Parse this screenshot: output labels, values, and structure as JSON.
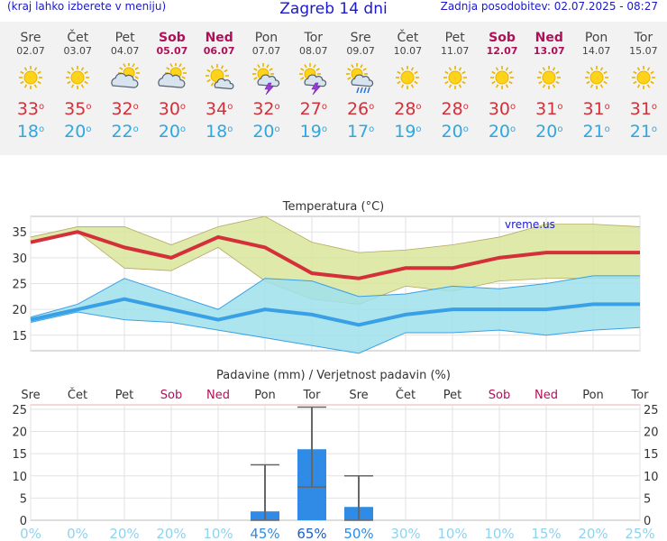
{
  "header": {
    "left_note": "(kraj lahko izberete v meniju)",
    "title": "Zagreb 14 dni",
    "updated": "Zadnja posodobitev: 02.07.2025 - 08:27"
  },
  "forecast": [
    {
      "day": "Sre",
      "date": "02.07",
      "icon": "sun-icon",
      "tmax": "33",
      "tmin": "18",
      "weekend": false
    },
    {
      "day": "Čet",
      "date": "03.07",
      "icon": "sun-icon",
      "tmax": "35",
      "tmin": "20",
      "weekend": false
    },
    {
      "day": "Pet",
      "date": "04.07",
      "icon": "sun-cloud-icon",
      "tmax": "32",
      "tmin": "22",
      "weekend": false
    },
    {
      "day": "Sob",
      "date": "05.07",
      "icon": "sun-cloud-icon",
      "tmax": "30",
      "tmin": "20",
      "weekend": true
    },
    {
      "day": "Ned",
      "date": "06.07",
      "icon": "sun-small-cloud-icon",
      "tmax": "34",
      "tmin": "18",
      "weekend": true
    },
    {
      "day": "Pon",
      "date": "07.07",
      "icon": "sun-storm-icon",
      "tmax": "32",
      "tmin": "20",
      "weekend": false
    },
    {
      "day": "Tor",
      "date": "08.07",
      "icon": "sun-storm-icon",
      "tmax": "27",
      "tmin": "19",
      "weekend": false
    },
    {
      "day": "Sre",
      "date": "09.07",
      "icon": "sun-rain-icon",
      "tmax": "26",
      "tmin": "17",
      "weekend": false
    },
    {
      "day": "Čet",
      "date": "10.07",
      "icon": "sun-icon",
      "tmax": "28",
      "tmin": "19",
      "weekend": false
    },
    {
      "day": "Pet",
      "date": "11.07",
      "icon": "sun-icon",
      "tmax": "28",
      "tmin": "20",
      "weekend": false
    },
    {
      "day": "Sob",
      "date": "12.07",
      "icon": "sun-icon",
      "tmax": "30",
      "tmin": "20",
      "weekend": true
    },
    {
      "day": "Ned",
      "date": "13.07",
      "icon": "sun-icon",
      "tmax": "31",
      "tmin": "20",
      "weekend": true
    },
    {
      "day": "Pon",
      "date": "14.07",
      "icon": "sun-icon",
      "tmax": "31",
      "tmin": "21",
      "weekend": false
    },
    {
      "day": "Tor",
      "date": "15.07",
      "icon": "sun-icon",
      "tmax": "31",
      "tmin": "21",
      "weekend": false
    }
  ],
  "degree_symbol": "o",
  "chart_data": [
    {
      "type": "line",
      "title": "Temperatura (°C)",
      "watermark": "vreme.us",
      "categories": [
        "Sre",
        "Čet",
        "Pet",
        "Sob",
        "Ned",
        "Pon",
        "Tor",
        "Sre",
        "Čet",
        "Pet",
        "Sob",
        "Ned",
        "Pon",
        "Tor"
      ],
      "ylim": [
        12,
        38
      ],
      "yticks": [
        15,
        20,
        25,
        30,
        35
      ],
      "grid": true,
      "series": [
        {
          "key": "max",
          "values": [
            33,
            35,
            32,
            30,
            34,
            32,
            27,
            26,
            28,
            28,
            30,
            31,
            31,
            31
          ],
          "color": "#d3303a"
        },
        {
          "key": "max_upper",
          "values": [
            34,
            36,
            36,
            32.5,
            36,
            38,
            33,
            31,
            31.5,
            32.5,
            34,
            36.5,
            36.5,
            36
          ],
          "color": "#d8e59b"
        },
        {
          "key": "max_lower",
          "values": [
            33,
            35,
            28,
            27.5,
            32,
            25.5,
            22,
            21,
            24.5,
            23.5,
            25.5,
            26,
            26,
            26
          ],
          "color": "#d8e59b"
        },
        {
          "key": "min",
          "values": [
            18,
            20,
            22,
            20,
            18,
            20,
            19,
            17,
            19,
            20,
            20,
            20,
            21,
            21
          ],
          "color": "#3aa0e6"
        },
        {
          "key": "min_upper",
          "values": [
            18.5,
            21,
            26,
            23,
            20,
            26,
            25.5,
            22.5,
            23,
            24.5,
            24,
            25,
            26.5,
            26.5
          ],
          "color": "#9fe1ec"
        },
        {
          "key": "min_lower",
          "values": [
            17.5,
            19.5,
            18,
            17.5,
            16,
            14.5,
            13,
            11.5,
            15.5,
            15.5,
            16,
            15,
            16,
            16.5
          ],
          "color": "#9fe1ec"
        }
      ]
    },
    {
      "type": "bar",
      "title": "Padavine (mm) / Verjetnost padavin (%)",
      "categories": [
        "Sre",
        "Čet",
        "Pet",
        "Sob",
        "Ned",
        "Pon",
        "Tor",
        "Sre",
        "Čet",
        "Pet",
        "Sob",
        "Ned",
        "Pon",
        "Tor"
      ],
      "weekend": [
        false,
        false,
        false,
        true,
        true,
        false,
        false,
        false,
        false,
        false,
        true,
        true,
        false,
        false
      ],
      "values": [
        0,
        0,
        0,
        0,
        0,
        2,
        16,
        3,
        0,
        0,
        0,
        0,
        0,
        0
      ],
      "error_high": [
        0,
        0,
        0,
        0,
        0,
        12.5,
        25.5,
        10,
        0,
        0,
        0,
        0,
        0,
        0
      ],
      "error_low": [
        0,
        0,
        0,
        0,
        0,
        0,
        7.5,
        0,
        0,
        0,
        0,
        0,
        0,
        0
      ],
      "ylim": [
        0,
        26
      ],
      "yticks": [
        0,
        5,
        10,
        15,
        20,
        25
      ],
      "probability": [
        "0%",
        "0%",
        "20%",
        "20%",
        "10%",
        "45%",
        "65%",
        "50%",
        "30%",
        "10%",
        "10%",
        "15%",
        "20%",
        "25%"
      ],
      "bar_color": "#2f8be6"
    }
  ]
}
